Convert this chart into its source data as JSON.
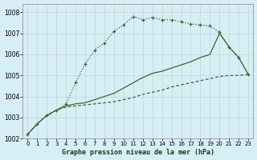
{
  "xlabel": "Graphe pression niveau de la mer (hPa)",
  "bg_color": "#d6eef5",
  "grid_color": "#c8d8d8",
  "line_color": "#2d6e2d",
  "ylim": [
    1002,
    1008.4
  ],
  "xlim": [
    -0.5,
    23.5
  ],
  "yticks": [
    1002,
    1003,
    1004,
    1005,
    1006,
    1007,
    1008
  ],
  "xticks": [
    0,
    1,
    2,
    3,
    4,
    5,
    6,
    7,
    8,
    9,
    10,
    11,
    12,
    13,
    14,
    15,
    16,
    17,
    18,
    19,
    20,
    21,
    22,
    23
  ],
  "series_dotted_markers": [
    1002.2,
    1002.7,
    1003.1,
    1003.35,
    1003.65,
    1004.65,
    1005.55,
    1006.2,
    1006.55,
    1007.1,
    1007.4,
    1007.8,
    1007.65,
    1007.75,
    1007.65,
    1007.65,
    1007.55,
    1007.45,
    1007.4,
    1007.35,
    1007.05,
    1006.35,
    1005.85,
    1005.05
  ],
  "series_solid_high": [
    1002.2,
    1002.7,
    1003.1,
    1003.35,
    1003.55,
    1003.65,
    1003.7,
    1003.85,
    1004.0,
    1004.15,
    1004.4,
    1004.65,
    1004.9,
    1005.1,
    1005.2,
    1005.35,
    1005.5,
    1005.65,
    1005.85,
    1006.0,
    1007.0,
    1006.35,
    1005.85,
    1005.05
  ],
  "series_solid_low": [
    1002.2,
    1002.7,
    1003.1,
    1003.35,
    1003.5,
    1003.55,
    1003.6,
    1003.65,
    1003.7,
    1003.75,
    1003.85,
    1003.95,
    1004.1,
    1004.2,
    1004.3,
    1004.45,
    1004.55,
    1004.65,
    1004.75,
    1004.85,
    1004.95,
    1005.0,
    1005.0,
    1005.05
  ]
}
